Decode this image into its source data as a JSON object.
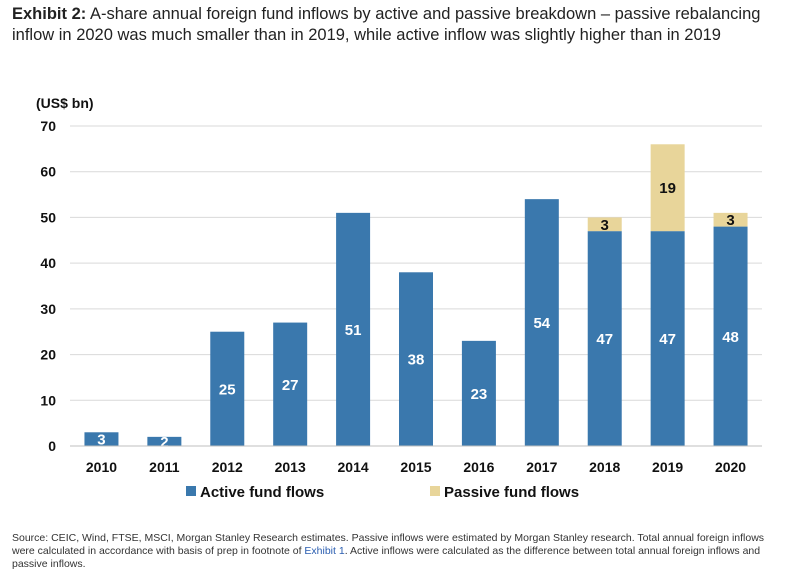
{
  "exhibit_label": "Exhibit 2:",
  "title_text": "A-share annual foreign fund inflows by active and passive breakdown – passive rebalancing inflow in 2020 was much smaller than in 2019, while active inflow was slightly higher than in 2019",
  "chart_data": {
    "type": "bar",
    "stacked": true,
    "unit_label": "(US$ bn)",
    "categories": [
      "2010",
      "2011",
      "2012",
      "2013",
      "2014",
      "2015",
      "2016",
      "2017",
      "2018",
      "2019",
      "2020"
    ],
    "series": [
      {
        "name": "Active fund flows",
        "color": "#3a78ad",
        "values": [
          3,
          2,
          25,
          27,
          51,
          38,
          23,
          54,
          47,
          47,
          48
        ],
        "labels": [
          "3",
          "2",
          "25",
          "27",
          "51",
          "38",
          "23",
          "54",
          "47",
          "47",
          "48"
        ]
      },
      {
        "name": "Passive fund flows",
        "color": "#e8d59a",
        "values": [
          0,
          0,
          0,
          0,
          0,
          0,
          0,
          0,
          3,
          19,
          3
        ],
        "labels": [
          "",
          "",
          "",
          "",
          "",
          "",
          "",
          "",
          "3",
          "19",
          "3"
        ]
      }
    ],
    "ylim": [
      0,
      70
    ],
    "yticks": [
      0,
      10,
      20,
      30,
      40,
      50,
      60,
      70
    ],
    "grid": true,
    "legend_position": "bottom"
  },
  "footnote": {
    "text_before": "Source: CEIC, Wind, FTSE, MSCI, Morgan Stanley Research estimates. Passive inflows were estimated by Morgan Stanley research. Total annual foreign inflows were calculated in accordance with basis of prep in footnote of ",
    "link_text": "Exhibit 1",
    "text_after": ". Active inflows were calculated as the difference between total annual foreign inflows and passive inflows."
  }
}
